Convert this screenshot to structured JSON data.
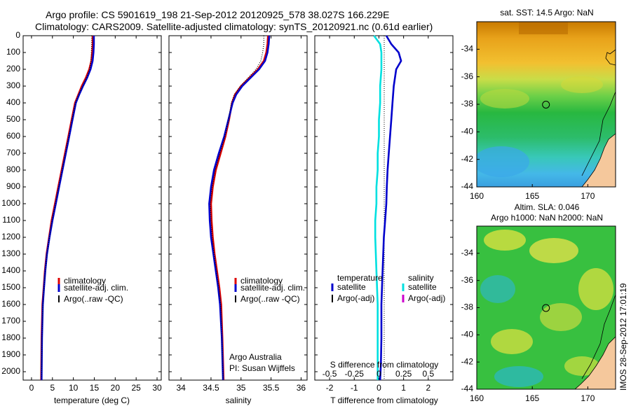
{
  "header": {
    "line1": "Argo profile: CS 5901619_198 21-Sep-2012 20120925_578 38.027S 166.229E",
    "line2": "Climatology: CARS2009. Satellite-adjusted climatology: synTS_20120921.nc (0.61d earlier)"
  },
  "colors": {
    "climatology": "#dd0000",
    "satellite": "#0000cc",
    "argo": "#000000",
    "salinity_satellite": "#00e0e0",
    "salinity_argo": "#cc00cc",
    "land": "#f5c89c"
  },
  "chart_data": [
    {
      "type": "line",
      "xlabel": "temperature (deg C)",
      "ylabel": "",
      "xlim": [
        -2,
        31
      ],
      "ylim": [
        2050,
        0
      ],
      "y_reversed": true,
      "xticks": [
        0,
        5,
        10,
        15,
        20,
        25,
        30
      ],
      "yticks": [
        0,
        100,
        200,
        300,
        400,
        500,
        600,
        700,
        800,
        900,
        1000,
        1100,
        1200,
        1300,
        1400,
        1500,
        1600,
        1700,
        1800,
        1900,
        2000
      ],
      "legend": [
        "climatology",
        "satellite-adj. clim.",
        "Argo(..raw -QC)"
      ],
      "legend_position": "lower-center",
      "series": [
        {
          "name": "climatology",
          "color": "#dd0000",
          "x": [
            14.6,
            14.6,
            14.5,
            14.3,
            13.8,
            13.0,
            12.0,
            11.2,
            10.4,
            9.6,
            8.8,
            8.0,
            7.2,
            6.4,
            5.6,
            4.8,
            4.2,
            3.6,
            3.2,
            2.9,
            2.6,
            2.4,
            2.3
          ],
          "y": [
            0,
            50,
            100,
            150,
            200,
            250,
            300,
            350,
            400,
            500,
            600,
            700,
            800,
            900,
            1000,
            1100,
            1200,
            1300,
            1400,
            1500,
            1600,
            1800,
            2050
          ]
        },
        {
          "name": "satellite-adj. clim.",
          "color": "#0000cc",
          "x": [
            14.9,
            14.9,
            14.8,
            14.6,
            14.1,
            13.3,
            12.3,
            11.4,
            10.6,
            9.8,
            9.0,
            8.2,
            7.4,
            6.6,
            5.8,
            5.0,
            4.3,
            3.7,
            3.3,
            3.0,
            2.7,
            2.5,
            2.4
          ],
          "y": [
            0,
            50,
            100,
            150,
            200,
            250,
            300,
            350,
            400,
            500,
            600,
            700,
            800,
            900,
            1000,
            1100,
            1200,
            1300,
            1400,
            1500,
            1600,
            1800,
            2050
          ]
        },
        {
          "name": "Argo(..raw -QC)",
          "color": "#000000",
          "x": [
            14.4,
            14.4,
            14.3,
            14.2,
            13.9,
            13.2,
            12.2,
            11.3,
            10.5,
            9.7,
            8.9,
            8.1,
            7.3,
            6.5,
            5.7,
            4.9,
            4.3,
            3.7,
            3.3,
            3.0,
            2.7,
            2.5,
            2.4
          ],
          "y": [
            0,
            50,
            100,
            150,
            200,
            250,
            300,
            350,
            400,
            500,
            600,
            700,
            800,
            900,
            1000,
            1100,
            1200,
            1300,
            1400,
            1500,
            1600,
            1800,
            2050
          ]
        }
      ]
    },
    {
      "type": "line",
      "xlabel": "salinity",
      "ylabel": "",
      "xlim": [
        33.8,
        36.1
      ],
      "ylim": [
        2050,
        0
      ],
      "y_reversed": true,
      "xticks": [
        34,
        34.5,
        35,
        35.5,
        36
      ],
      "legend": [
        "climatology",
        "satellite-adj. clim.",
        "Argo(..raw -QC)"
      ],
      "legend_position": "lower-right",
      "annotation": [
        "Argo Australia",
        "PI: Susan Wijffels"
      ],
      "series": [
        {
          "name": "climatology",
          "color": "#dd0000",
          "x": [
            35.45,
            35.44,
            35.42,
            35.38,
            35.28,
            35.14,
            35.0,
            34.9,
            34.85,
            34.8,
            34.74,
            34.66,
            34.58,
            34.53,
            34.5,
            34.51,
            34.53,
            34.56,
            34.6,
            34.64,
            34.67,
            34.69,
            34.71
          ],
          "y": [
            0,
            50,
            100,
            150,
            200,
            250,
            300,
            350,
            400,
            500,
            600,
            700,
            800,
            900,
            1000,
            1100,
            1200,
            1300,
            1400,
            1500,
            1600,
            1800,
            2050
          ]
        },
        {
          "name": "satellite-adj. clim.",
          "color": "#0000cc",
          "x": [
            35.47,
            35.46,
            35.44,
            35.4,
            35.3,
            35.16,
            35.02,
            34.92,
            34.86,
            34.79,
            34.72,
            34.63,
            34.55,
            34.5,
            34.47,
            34.48,
            34.5,
            34.54,
            34.58,
            34.62,
            34.65,
            34.68,
            34.7
          ],
          "y": [
            0,
            50,
            100,
            150,
            200,
            250,
            300,
            350,
            400,
            500,
            600,
            700,
            800,
            900,
            1000,
            1100,
            1200,
            1300,
            1400,
            1500,
            1600,
            1800,
            2050
          ]
        },
        {
          "name": "Argo(..raw -QC)",
          "color": "#000000",
          "x": [
            35.38,
            35.38,
            35.36,
            35.33,
            35.25,
            35.12,
            34.99,
            34.89,
            34.84,
            34.79,
            34.73,
            34.65,
            34.57,
            34.52,
            34.49,
            34.5,
            34.52,
            34.55,
            34.59,
            34.63,
            34.66,
            34.68,
            34.7
          ],
          "y": [
            0,
            50,
            100,
            150,
            200,
            250,
            300,
            350,
            400,
            500,
            600,
            700,
            800,
            900,
            1000,
            1100,
            1200,
            1300,
            1400,
            1500,
            1600,
            1800,
            2050
          ]
        }
      ]
    },
    {
      "type": "line",
      "xlabel": "T difference from climatology",
      "xlabel_secondary": "S difference from climatology",
      "xlim": [
        -2.6,
        3.0
      ],
      "xticks": [
        -2,
        -1,
        0,
        1,
        2
      ],
      "secondary_ticks": [
        {
          "label": "-0.5",
          "v": -2
        },
        {
          "label": "-0.25",
          "v": -1
        },
        {
          "label": "0",
          "v": 0
        },
        {
          "label": "0.25",
          "v": 1
        },
        {
          "label": "0.5",
          "v": 2
        }
      ],
      "ylim": [
        2050,
        0
      ],
      "y_reversed": true,
      "legend_temperature_title": "temperature",
      "legend_salinity_title": "salinity",
      "legend_temperature": [
        "satellite",
        "Argo(-adj)"
      ],
      "legend_salinity": [
        "satellite",
        "Argo(-adj)"
      ],
      "series": [
        {
          "name": "satellite",
          "group": "temperature",
          "color": "#0000cc",
          "x": [
            0.3,
            0.5,
            0.8,
            0.9,
            0.7,
            0.6,
            0.55,
            0.5,
            0.45,
            0.4,
            0.35,
            0.32,
            0.3,
            0.25,
            0.2,
            0.15,
            0.1,
            0.1,
            0.08,
            0.05
          ],
          "y": [
            0,
            50,
            100,
            150,
            200,
            300,
            400,
            500,
            600,
            700,
            800,
            900,
            1000,
            1100,
            1200,
            1400,
            1600,
            1800,
            1950,
            2050
          ]
        },
        {
          "name": "satellite",
          "group": "salinity",
          "color": "#00e0e0",
          "x": [
            -0.2,
            0.05,
            0.1,
            0.1,
            0.05,
            0.05,
            0.0,
            0.0,
            -0.05,
            -0.05,
            -0.1,
            -0.1,
            -0.15,
            -0.15,
            -0.1,
            -0.05,
            -0.05,
            -0.05,
            -0.05
          ],
          "y": [
            0,
            50,
            100,
            200,
            300,
            400,
            500,
            600,
            700,
            800,
            900,
            1000,
            1100,
            1200,
            1400,
            1600,
            1800,
            1950,
            2050
          ]
        }
      ]
    }
  ],
  "sst_map": {
    "title": "sat. SST: 14.5  Argo: NaN",
    "xticks": [
      160,
      165,
      170
    ],
    "yticks": [
      -34,
      -36,
      -38,
      -40,
      -42,
      -44
    ],
    "xlim": [
      160,
      172.5
    ],
    "ylim": [
      -44,
      -32
    ],
    "marker": {
      "lon": 166.229,
      "lat": -38.027
    }
  },
  "sla_map": {
    "title_line1": "Altim. SLA: 0.046",
    "title_line2": "Argo h1000: NaN  h2000: NaN",
    "xticks": [
      160,
      165,
      170
    ],
    "yticks": [
      -34,
      -36,
      -38,
      -40,
      -42,
      -44
    ],
    "xlim": [
      160,
      172.5
    ],
    "ylim": [
      -44,
      -32
    ],
    "marker": {
      "lon": 166.229,
      "lat": -38.027
    }
  },
  "footer": {
    "watermark": "IMOS 28-Sep-2012 17:01:19"
  }
}
